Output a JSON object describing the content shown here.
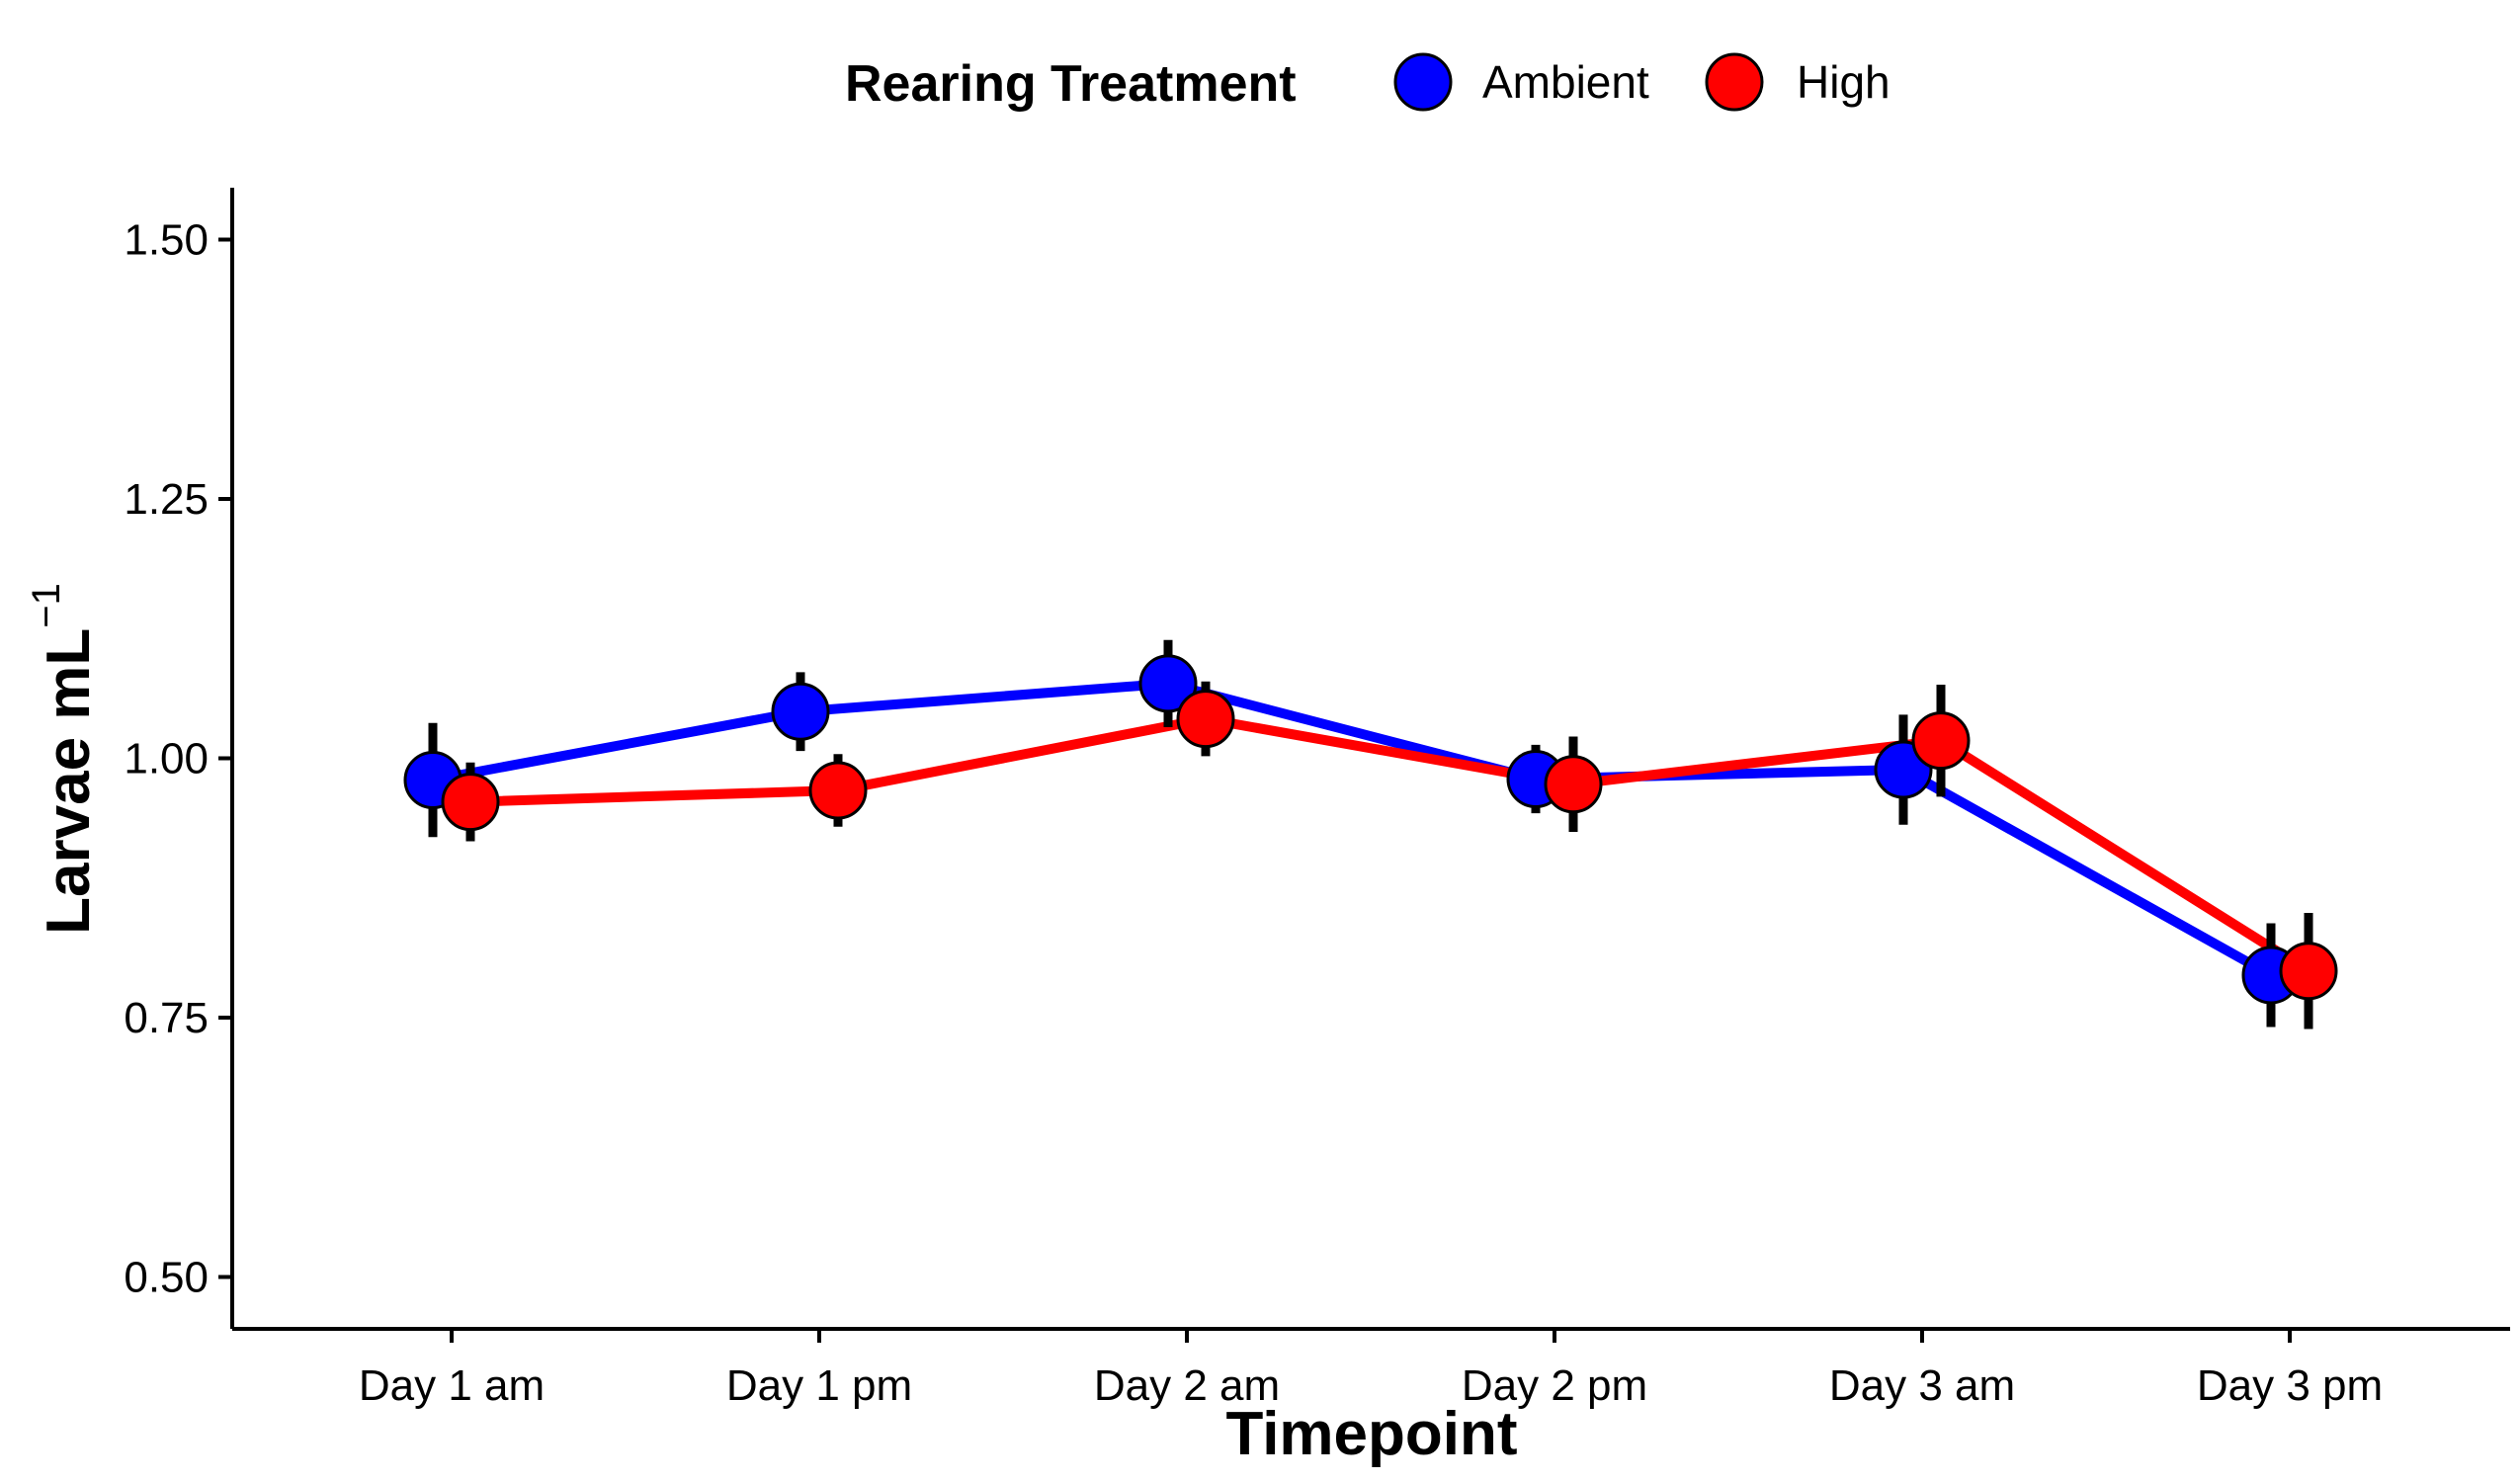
{
  "chart_data": {
    "type": "line",
    "xlabel": "Timepoint",
    "ylabel": "Larvae mL",
    "ylabel_superscript": "−1",
    "categories": [
      "Day 1 am",
      "Day 1 pm",
      "Day 2 am",
      "Day 2 pm",
      "Day 3 am",
      "Day 3 pm"
    ],
    "ylim": [
      0.45,
      1.55
    ],
    "yticks": [
      0.5,
      0.75,
      1.0,
      1.25,
      1.5
    ],
    "ytick_labels": [
      "0.50",
      "0.75",
      "1.00",
      "1.25",
      "1.50"
    ],
    "grid": false,
    "legend": {
      "title": "Rearing Treatment",
      "position": "top"
    },
    "series": [
      {
        "name": "Ambient",
        "color": "#0000ff",
        "values": [
          0.979,
          1.045,
          1.072,
          0.98,
          0.989,
          0.791
        ],
        "error": [
          0.055,
          0.038,
          0.042,
          0.033,
          0.053,
          0.05
        ]
      },
      {
        "name": "High",
        "color": "#ff0000",
        "values": [
          0.958,
          0.969,
          1.038,
          0.975,
          1.017,
          0.795
        ],
        "error": [
          0.038,
          0.035,
          0.036,
          0.046,
          0.054,
          0.056
        ]
      }
    ]
  }
}
